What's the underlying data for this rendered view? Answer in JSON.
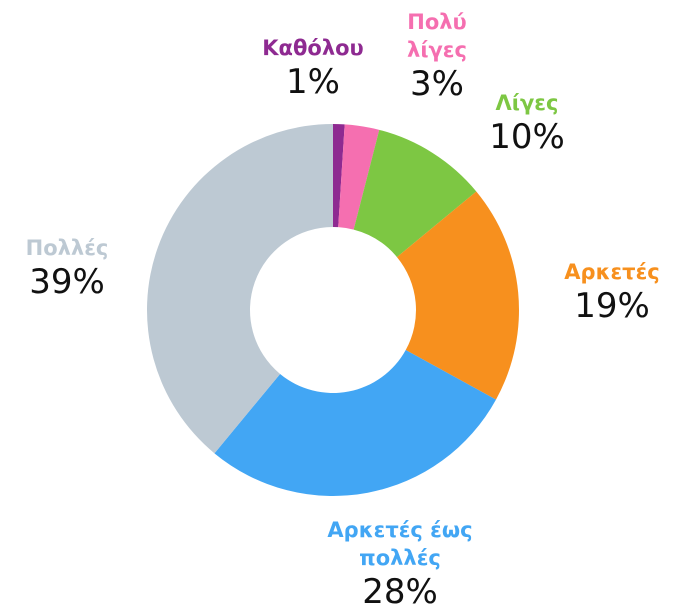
{
  "chart_data": {
    "type": "donut",
    "categories": [
      "Καθόλου",
      "Πολύ λίγες",
      "Λίγες",
      "Αρκετές",
      "Αρκετές έως πολλές",
      "Πολλές"
    ],
    "values": [
      1,
      3,
      10,
      19,
      28,
      39
    ],
    "value_labels": [
      "1%",
      "3%",
      "10%",
      "19%",
      "28%",
      "39%"
    ],
    "colors": [
      "#8e2a91",
      "#f56fb0",
      "#7dc743",
      "#f7901e",
      "#42a6f4",
      "#bdc9d3"
    ]
  }
}
